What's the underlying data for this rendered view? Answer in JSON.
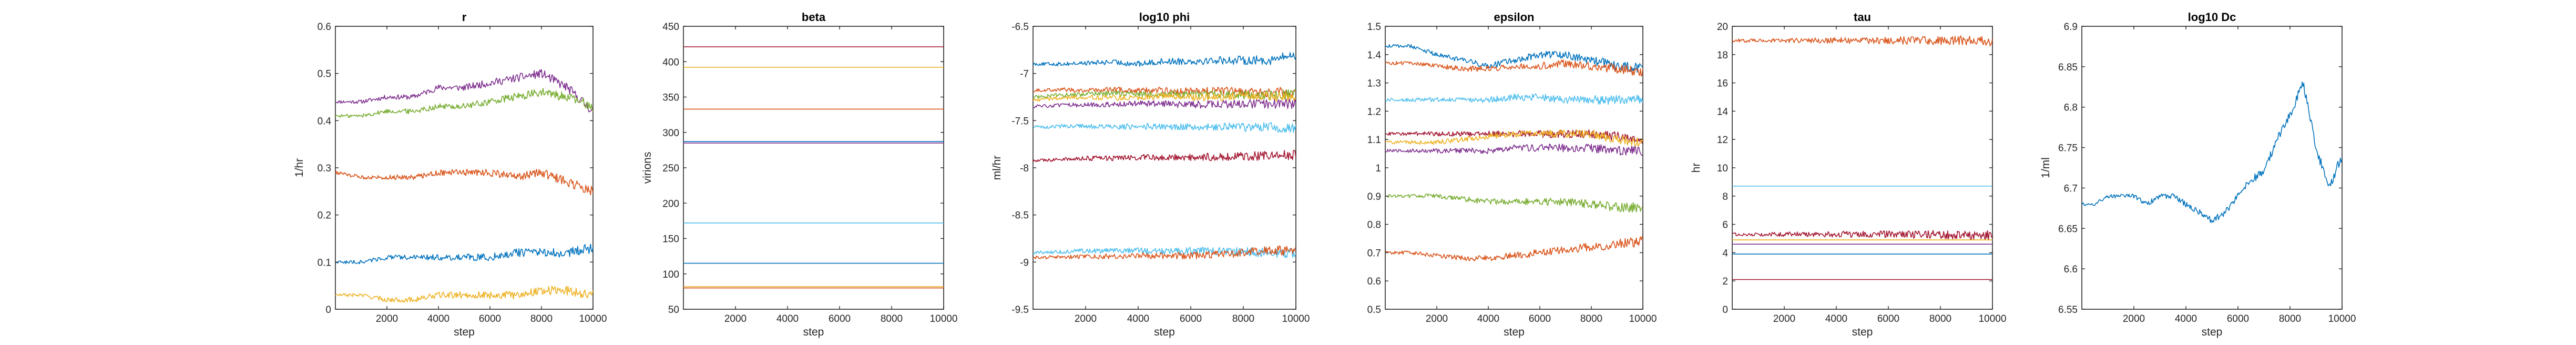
{
  "chart_data": [
    {
      "type": "line",
      "title": "r",
      "xlabel": "step",
      "ylabel": "1/hr",
      "xlim": [
        0,
        10000
      ],
      "ylim": [
        0,
        0.6
      ],
      "xticks": [
        2000,
        4000,
        6000,
        8000,
        10000
      ],
      "yticks": [
        0,
        0.1,
        0.2,
        0.3,
        0.4,
        0.5,
        0.6
      ],
      "series": [
        {
          "color": "#7E2F8E",
          "values": [
            0.44,
            0.44,
            0.45,
            0.45,
            0.47,
            0.47,
            0.48,
            0.49,
            0.5,
            0.47,
            0.42
          ]
        },
        {
          "color": "#77AC30",
          "values": [
            0.41,
            0.41,
            0.42,
            0.42,
            0.43,
            0.43,
            0.44,
            0.45,
            0.46,
            0.45,
            0.43
          ]
        },
        {
          "color": "#D95319",
          "values": [
            0.29,
            0.28,
            0.28,
            0.28,
            0.29,
            0.29,
            0.29,
            0.28,
            0.29,
            0.27,
            0.25
          ]
        },
        {
          "color": "#0072BD",
          "values": [
            0.1,
            0.1,
            0.11,
            0.11,
            0.11,
            0.11,
            0.11,
            0.12,
            0.12,
            0.12,
            0.13
          ]
        },
        {
          "color": "#EDB120",
          "values": [
            0.03,
            0.03,
            0.02,
            0.02,
            0.03,
            0.03,
            0.03,
            0.03,
            0.04,
            0.04,
            0.03
          ]
        }
      ]
    },
    {
      "type": "line",
      "title": "beta",
      "xlabel": "step",
      "ylabel": "virions",
      "xlim": [
        0,
        10000
      ],
      "ylim": [
        50,
        450
      ],
      "xticks": [
        2000,
        4000,
        6000,
        8000,
        10000
      ],
      "yticks": [
        50,
        100,
        150,
        200,
        250,
        300,
        350,
        400,
        450
      ],
      "series": [
        {
          "color": "#A2142F",
          "values": [
            421,
            421
          ]
        },
        {
          "color": "#EDB120",
          "values": [
            392,
            392
          ]
        },
        {
          "color": "#D95319",
          "values": [
            333,
            333
          ]
        },
        {
          "color": "#0072BD",
          "values": [
            287,
            287
          ]
        },
        {
          "color": "#7E2F8E",
          "values": [
            285,
            285
          ]
        },
        {
          "color": "#4DBEEE",
          "values": [
            172,
            172
          ]
        },
        {
          "color": "#0072BD",
          "values": [
            115,
            115
          ]
        },
        {
          "color": "#EDB120",
          "values": [
            82,
            82
          ]
        },
        {
          "color": "#D95319",
          "values": [
            80,
            80
          ]
        }
      ]
    },
    {
      "type": "line",
      "title": "log10 phi",
      "xlabel": "step",
      "ylabel": "ml/hr",
      "xlim": [
        0,
        10000
      ],
      "ylim": [
        -9.5,
        -6.5
      ],
      "xticks": [
        2000,
        4000,
        6000,
        8000,
        10000
      ],
      "yticks": [
        -9.5,
        -9,
        -8.5,
        -8,
        -7.5,
        -7,
        -6.5
      ],
      "series": [
        {
          "color": "#0072BD",
          "values": [
            -6.9,
            -6.9,
            -6.89,
            -6.88,
            -6.9,
            -6.87,
            -6.87,
            -6.86,
            -6.86,
            -6.86,
            -6.8
          ]
        },
        {
          "color": "#D95319",
          "values": [
            -7.18,
            -7.17,
            -7.18,
            -7.17,
            -7.18,
            -7.18,
            -7.19,
            -7.18,
            -7.2,
            -7.2,
            -7.19
          ]
        },
        {
          "color": "#77AC30",
          "values": [
            -7.25,
            -7.23,
            -7.22,
            -7.21,
            -7.22,
            -7.22,
            -7.23,
            -7.22,
            -7.23,
            -7.23,
            -7.22
          ]
        },
        {
          "color": "#EDB120",
          "values": [
            -7.28,
            -7.26,
            -7.25,
            -7.26,
            -7.25,
            -7.24,
            -7.25,
            -7.25,
            -7.24,
            -7.25,
            -7.25
          ]
        },
        {
          "color": "#7E2F8E",
          "values": [
            -7.35,
            -7.34,
            -7.33,
            -7.33,
            -7.32,
            -7.32,
            -7.33,
            -7.33,
            -7.32,
            -7.32,
            -7.32
          ]
        },
        {
          "color": "#4DBEEE",
          "values": [
            -7.57,
            -7.56,
            -7.56,
            -7.57,
            -7.56,
            -7.56,
            -7.57,
            -7.57,
            -7.57,
            -7.57,
            -7.58
          ]
        },
        {
          "color": "#A2142F",
          "values": [
            -7.93,
            -7.91,
            -7.9,
            -7.9,
            -7.89,
            -7.89,
            -7.89,
            -7.88,
            -7.88,
            -7.87,
            -7.86
          ]
        },
        {
          "color": "#4DBEEE",
          "values": [
            -8.9,
            -8.89,
            -8.88,
            -8.88,
            -8.88,
            -8.88,
            -8.88,
            -8.88,
            -8.89,
            -8.9,
            -8.91
          ]
        },
        {
          "color": "#D95319",
          "values": [
            -8.95,
            -8.95,
            -8.94,
            -8.94,
            -8.93,
            -8.93,
            -8.93,
            -8.92,
            -8.9,
            -8.87,
            -8.88
          ]
        }
      ]
    },
    {
      "type": "line",
      "title": "epsilon",
      "xlabel": "step",
      "ylabel": "",
      "xlim": [
        0,
        10000
      ],
      "ylim": [
        0.5,
        1.5
      ],
      "xticks": [
        2000,
        4000,
        6000,
        8000,
        10000
      ],
      "yticks": [
        0.5,
        0.6,
        0.7,
        0.8,
        0.9,
        1,
        1.1,
        1.2,
        1.3,
        1.4,
        1.5
      ],
      "series": [
        {
          "color": "#0072BD",
          "values": [
            1.43,
            1.43,
            1.4,
            1.38,
            1.36,
            1.38,
            1.4,
            1.4,
            1.38,
            1.36,
            1.35
          ]
        },
        {
          "color": "#D95319",
          "values": [
            1.37,
            1.37,
            1.36,
            1.35,
            1.35,
            1.36,
            1.36,
            1.37,
            1.36,
            1.35,
            1.34
          ]
        },
        {
          "color": "#4DBEEE",
          "values": [
            1.24,
            1.24,
            1.24,
            1.24,
            1.24,
            1.25,
            1.25,
            1.24,
            1.24,
            1.24,
            1.24
          ]
        },
        {
          "color": "#A2142F",
          "values": [
            1.12,
            1.12,
            1.12,
            1.12,
            1.12,
            1.12,
            1.12,
            1.12,
            1.12,
            1.11,
            1.1
          ]
        },
        {
          "color": "#EDB120",
          "values": [
            1.09,
            1.09,
            1.09,
            1.1,
            1.11,
            1.12,
            1.12,
            1.12,
            1.12,
            1.1,
            1.09
          ]
        },
        {
          "color": "#7E2F8E",
          "values": [
            1.06,
            1.06,
            1.06,
            1.06,
            1.06,
            1.07,
            1.07,
            1.07,
            1.07,
            1.06,
            1.06
          ]
        },
        {
          "color": "#77AC30",
          "values": [
            0.9,
            0.9,
            0.9,
            0.89,
            0.88,
            0.88,
            0.88,
            0.88,
            0.87,
            0.86,
            0.86
          ]
        },
        {
          "color": "#D95319",
          "values": [
            0.7,
            0.7,
            0.69,
            0.68,
            0.68,
            0.69,
            0.7,
            0.71,
            0.72,
            0.73,
            0.74
          ]
        }
      ]
    },
    {
      "type": "line",
      "title": "tau",
      "xlabel": "step",
      "ylabel": "hr",
      "xlim": [
        0,
        10000
      ],
      "ylim": [
        0,
        20
      ],
      "xticks": [
        2000,
        4000,
        6000,
        8000,
        10000
      ],
      "yticks": [
        0,
        2,
        4,
        6,
        8,
        10,
        12,
        14,
        16,
        18,
        20
      ],
      "series": [
        {
          "color": "#D95319",
          "values": [
            19.0,
            19.0,
            19.0,
            19.0,
            19.0,
            19.0,
            19.0,
            19.0,
            19.0,
            19.0,
            18.9
          ]
        },
        {
          "color": "#4DBEEE",
          "values": [
            8.7,
            8.7,
            8.7,
            8.7,
            8.7,
            8.7,
            8.7,
            8.7,
            8.7,
            8.7,
            8.7
          ]
        },
        {
          "color": "#A2142F",
          "values": [
            5.3,
            5.3,
            5.3,
            5.3,
            5.3,
            5.3,
            5.3,
            5.3,
            5.3,
            5.2,
            5.2
          ]
        },
        {
          "color": "#EDB120",
          "values": [
            4.9,
            4.9,
            4.9,
            4.9,
            4.9,
            4.9,
            4.9,
            4.9,
            4.9,
            4.9,
            4.9
          ]
        },
        {
          "color": "#7E2F8E",
          "values": [
            4.6,
            4.6,
            4.6,
            4.6,
            4.6,
            4.6,
            4.6,
            4.6,
            4.6,
            4.6,
            4.6
          ]
        },
        {
          "color": "#0072BD",
          "values": [
            3.9,
            3.9,
            3.9,
            3.9,
            3.9,
            3.9,
            3.9,
            3.9,
            3.9,
            3.9,
            3.9
          ]
        },
        {
          "color": "#A2142F",
          "values": [
            2.1,
            2.1,
            2.1,
            2.1,
            2.1,
            2.1,
            2.1,
            2.1,
            2.1,
            2.1,
            2.1
          ]
        }
      ]
    },
    {
      "type": "line",
      "title": "log10 Dc",
      "xlabel": "step",
      "ylabel": "1/ml",
      "xlim": [
        0,
        10000
      ],
      "ylim": [
        6.55,
        6.9
      ],
      "xticks": [
        2000,
        4000,
        6000,
        8000,
        10000
      ],
      "yticks": [
        6.55,
        6.6,
        6.65,
        6.7,
        6.75,
        6.8,
        6.85,
        6.9
      ],
      "series": [
        {
          "color": "#0072BD",
          "values": [
            6.68,
            6.68,
            6.69,
            6.69,
            6.69,
            6.68,
            6.69,
            6.69,
            6.68,
            6.67,
            6.66,
            6.67,
            6.69,
            6.71,
            6.72,
            6.76,
            6.79,
            6.83,
            6.75,
            6.7,
            6.74
          ]
        }
      ]
    }
  ]
}
